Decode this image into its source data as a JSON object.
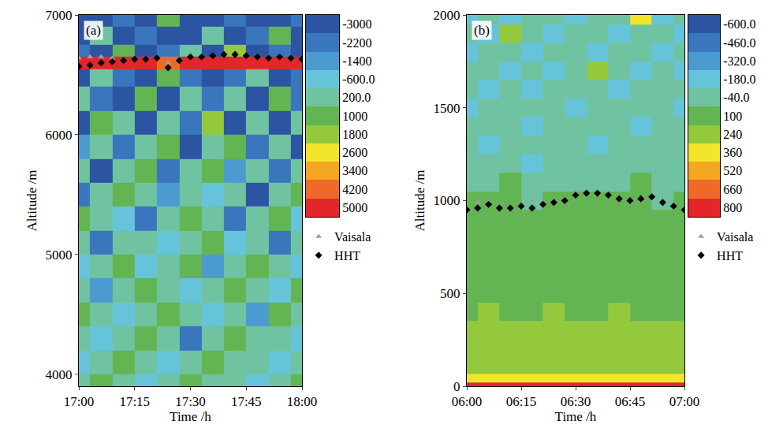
{
  "chart_data": [
    {
      "type": "heatmap",
      "panel_label": "(a)",
      "xlabel": "Time /h",
      "ylabel": "Altitude /m",
      "xlim": [
        17,
        18
      ],
      "xticks": [
        {
          "value": 17,
          "label": "17:00"
        },
        {
          "value": 17.25,
          "label": "17:15"
        },
        {
          "value": 17.5,
          "label": "17:30"
        },
        {
          "value": 17.75,
          "label": "17:45"
        },
        {
          "value": 18,
          "label": "18:00"
        }
      ],
      "ylim": [
        3900,
        7000
      ],
      "yticks": [
        4000,
        5000,
        6000,
        7000
      ],
      "grid": false,
      "legend": "right",
      "x": [
        17,
        17.1,
        17.2,
        17.3,
        17.4,
        17.5,
        17.6,
        17.7,
        17.8,
        17.9,
        18
      ],
      "y": [
        3900,
        4100,
        4300,
        4500,
        4700,
        4900,
        5100,
        5300,
        5500,
        5700,
        5900,
        6100,
        6300,
        6500,
        6600,
        6700,
        6800,
        7000
      ],
      "cells": [
        [
          200,
          1000,
          200,
          -600,
          200,
          1000,
          200,
          200,
          -600,
          200,
          1000
        ],
        [
          -600,
          200,
          1000,
          200,
          -600,
          200,
          1000,
          200,
          200,
          -600,
          200
        ],
        [
          200,
          -600,
          200,
          1000,
          200,
          -2200,
          200,
          1000,
          200,
          200,
          -600
        ],
        [
          1000,
          200,
          -600,
          200,
          1000,
          200,
          -600,
          200,
          -1400,
          1000,
          200
        ],
        [
          200,
          -1400,
          200,
          1000,
          200,
          -600,
          200,
          1000,
          200,
          -600,
          1000
        ],
        [
          -600,
          200,
          1000,
          -600,
          200,
          1000,
          -1400,
          200,
          1000,
          200,
          -600
        ],
        [
          200,
          -2200,
          200,
          200,
          -600,
          200,
          1000,
          -600,
          200,
          -2200,
          200
        ],
        [
          1000,
          200,
          -600,
          -2200,
          200,
          1000,
          200,
          -2200,
          200,
          1000,
          -600
        ],
        [
          -2200,
          200,
          1000,
          200,
          -1400,
          200,
          -600,
          200,
          -3000,
          200,
          1000
        ],
        [
          200,
          -3000,
          200,
          1000,
          -2200,
          200,
          1000,
          -1400,
          200,
          -2200,
          200
        ],
        [
          -1400,
          200,
          -2200,
          200,
          1000,
          -3000,
          200,
          1000,
          -2200,
          200,
          -3000
        ],
        [
          -3000,
          1000,
          200,
          -3000,
          200,
          -2200,
          1800,
          -3000,
          200,
          -3000,
          200
        ],
        [
          200,
          -2200,
          -3000,
          1000,
          -3000,
          200,
          -2200,
          200,
          -3000,
          1000,
          -2200
        ],
        [
          -3000,
          200,
          -2200,
          -3000,
          1000,
          -2200,
          -3000,
          -2200,
          200,
          -3000,
          -2200
        ],
        [
          5000,
          5000,
          5000,
          5000,
          4200,
          5000,
          5000,
          5000,
          5000,
          5000,
          5000
        ],
        [
          -2200,
          -3000,
          1000,
          -3000,
          -2200,
          200,
          -3000,
          1800,
          -3000,
          -2200,
          -3000
        ],
        [
          -3000,
          200,
          -3000,
          -2200,
          -3000,
          -3000,
          200,
          -3000,
          -2200,
          1000,
          -3000
        ],
        [
          -3000,
          -3000,
          -2200,
          -3000,
          1000,
          -3000,
          -3000,
          -2200,
          -3000,
          -3000,
          -2200
        ]
      ],
      "colors": [
        "#2b55a3",
        "#3a76bd",
        "#4c9bd0",
        "#66c4da",
        "#6fc3a0",
        "#62b552",
        "#95c93d",
        "#f2e52b",
        "#f5a623",
        "#ef6a2a",
        "#e3262b"
      ],
      "colorbar": {
        "range": [
          -3000,
          5000
        ],
        "ticks": [
          -3000,
          -2200,
          -1400,
          {
            "value": -600,
            "label": "-600.0"
          },
          {
            "value": 200,
            "label": "200.0"
          },
          1000,
          1800,
          2600,
          3400,
          4200,
          5000
        ]
      },
      "series": [
        {
          "name": "Vaisala",
          "color": "#a0a0a0",
          "marker": "triangle-up",
          "x": [
            17,
            17.05,
            17.1,
            17.15,
            17.2,
            17.25,
            17.3,
            17.35,
            17.4,
            17.45,
            17.5,
            17.55,
            17.6,
            17.65,
            17.7,
            17.75,
            17.8,
            17.85,
            17.9,
            17.95,
            18
          ],
          "values": [
            6640,
            6650,
            6650,
            6640,
            6630,
            6630,
            6630,
            6640,
            6600,
            6630,
            6660,
            6660,
            6670,
            6680,
            6670,
            6670,
            6660,
            6650,
            6660,
            6650,
            6640
          ]
        },
        {
          "name": "HHT",
          "color": "#000000",
          "marker": "diamond",
          "x": [
            17,
            17.05,
            17.1,
            17.15,
            17.2,
            17.25,
            17.3,
            17.35,
            17.4,
            17.45,
            17.5,
            17.55,
            17.6,
            17.65,
            17.7,
            17.75,
            17.8,
            17.85,
            17.9,
            17.95,
            18
          ],
          "values": [
            6570,
            6580,
            6600,
            6610,
            6620,
            6630,
            6630,
            6640,
            6560,
            6620,
            6650,
            6650,
            6660,
            6670,
            6670,
            6660,
            6650,
            6640,
            6650,
            6640,
            6630
          ]
        }
      ]
    },
    {
      "type": "heatmap",
      "panel_label": "(b)",
      "xlabel": "Time /h",
      "ylabel": "Altitude /m",
      "xlim": [
        6,
        7
      ],
      "xticks": [
        {
          "value": 6,
          "label": "06:00"
        },
        {
          "value": 6.25,
          "label": "06:15"
        },
        {
          "value": 6.5,
          "label": "06:30"
        },
        {
          "value": 6.75,
          "label": "06:45"
        },
        {
          "value": 7,
          "label": "07:00"
        }
      ],
      "ylim": [
        0,
        2000
      ],
      "yticks": [
        0,
        500,
        1000,
        1500,
        2000
      ],
      "grid": false,
      "legend": "right",
      "x": [
        6,
        6.1,
        6.2,
        6.3,
        6.4,
        6.5,
        6.6,
        6.7,
        6.8,
        6.9,
        7
      ],
      "y": [
        10,
        30,
        100,
        200,
        300,
        400,
        500,
        600,
        700,
        800,
        900,
        1000,
        1100,
        1200,
        1300,
        1400,
        1500,
        1600,
        1700,
        1800,
        1900,
        2000
      ],
      "cells": [
        [
          800,
          800,
          800,
          800,
          800,
          800,
          800,
          800,
          800,
          800,
          800
        ],
        [
          360,
          360,
          360,
          360,
          360,
          360,
          360,
          360,
          360,
          360,
          360
        ],
        [
          240,
          240,
          240,
          240,
          240,
          240,
          240,
          240,
          240,
          240,
          240
        ],
        [
          240,
          240,
          240,
          240,
          240,
          240,
          240,
          240,
          240,
          240,
          240
        ],
        [
          240,
          240,
          240,
          240,
          240,
          240,
          240,
          240,
          240,
          240,
          240
        ],
        [
          100,
          240,
          100,
          100,
          240,
          100,
          100,
          240,
          100,
          100,
          100
        ],
        [
          100,
          100,
          100,
          100,
          100,
          100,
          100,
          100,
          100,
          100,
          100
        ],
        [
          100,
          100,
          100,
          100,
          100,
          100,
          100,
          100,
          100,
          100,
          100
        ],
        [
          100,
          100,
          100,
          100,
          100,
          100,
          100,
          100,
          100,
          100,
          100
        ],
        [
          100,
          100,
          100,
          100,
          100,
          100,
          100,
          100,
          100,
          100,
          100
        ],
        [
          100,
          100,
          100,
          100,
          100,
          100,
          100,
          100,
          100,
          100,
          100
        ],
        [
          100,
          100,
          100,
          -40,
          100,
          100,
          100,
          100,
          100,
          -40,
          100
        ],
        [
          -40,
          -40,
          100,
          -40,
          -40,
          -40,
          -40,
          -40,
          100,
          -40,
          -40
        ],
        [
          -40,
          -40,
          -40,
          -180,
          -40,
          -40,
          -40,
          -40,
          -40,
          -40,
          -40
        ],
        [
          -40,
          -180,
          -40,
          -40,
          -40,
          -40,
          -180,
          -40,
          -40,
          -40,
          -40
        ],
        [
          -40,
          -40,
          -40,
          -180,
          -40,
          -40,
          -40,
          -40,
          -180,
          -40,
          -40
        ],
        [
          -180,
          -40,
          -40,
          -40,
          -40,
          -180,
          -40,
          -40,
          -40,
          -40,
          -180
        ],
        [
          -40,
          -180,
          -40,
          -180,
          -40,
          -40,
          -40,
          -180,
          -40,
          -40,
          -40
        ],
        [
          -40,
          -40,
          -180,
          -40,
          -180,
          -40,
          240,
          -40,
          -180,
          -40,
          -180
        ],
        [
          -180,
          -40,
          -40,
          -180,
          -40,
          -40,
          -180,
          -40,
          -40,
          -180,
          -40
        ],
        [
          -40,
          -180,
          240,
          -40,
          -180,
          -40,
          -40,
          -180,
          -40,
          -40,
          -180
        ],
        [
          -180,
          -40,
          -180,
          -40,
          -40,
          -180,
          -40,
          -40,
          360,
          -180,
          -40
        ]
      ],
      "colors": [
        "#2b55a3",
        "#3a76bd",
        "#4c9bd0",
        "#66c4da",
        "#6fc3a0",
        "#62b552",
        "#95c93d",
        "#f2e52b",
        "#f5a623",
        "#ef6a2a",
        "#e3262b"
      ],
      "colorbar": {
        "range": [
          -600,
          800
        ],
        "ticks": [
          {
            "value": -600,
            "label": "-600.0"
          },
          {
            "value": -460,
            "label": "-460.0"
          },
          {
            "value": -320,
            "label": "-320.0"
          },
          {
            "value": -180,
            "label": "-180.0"
          },
          {
            "value": -40,
            "label": "-40.0"
          },
          100,
          240,
          360,
          520,
          660,
          800
        ]
      },
      "series": [
        {
          "name": "Vaisala",
          "color": "#a0a0a0",
          "marker": "triangle-up",
          "x": [
            6,
            6.05,
            6.1,
            6.15,
            6.2,
            6.25,
            6.3,
            6.35,
            6.4,
            6.45,
            6.5,
            6.55,
            6.6,
            6.65,
            6.7,
            6.75,
            6.8,
            6.85,
            6.9,
            6.95,
            7
          ],
          "values": [
            960,
            990,
            990,
            970,
            970,
            980,
            1000,
            990,
            1000,
            1010,
            1040,
            1050,
            1030,
            1030,
            1020,
            990,
            1000,
            1030,
            1000,
            980,
            960
          ]
        },
        {
          "name": "HHT",
          "color": "#000000",
          "marker": "diamond",
          "x": [
            6,
            6.05,
            6.1,
            6.15,
            6.2,
            6.25,
            6.3,
            6.35,
            6.4,
            6.45,
            6.5,
            6.55,
            6.6,
            6.65,
            6.7,
            6.75,
            6.8,
            6.85,
            6.9,
            6.95,
            7
          ],
          "values": [
            950,
            960,
            980,
            960,
            960,
            970,
            960,
            980,
            990,
            1000,
            1030,
            1040,
            1040,
            1030,
            1010,
            1000,
            1010,
            1020,
            990,
            970,
            950
          ]
        }
      ]
    }
  ]
}
